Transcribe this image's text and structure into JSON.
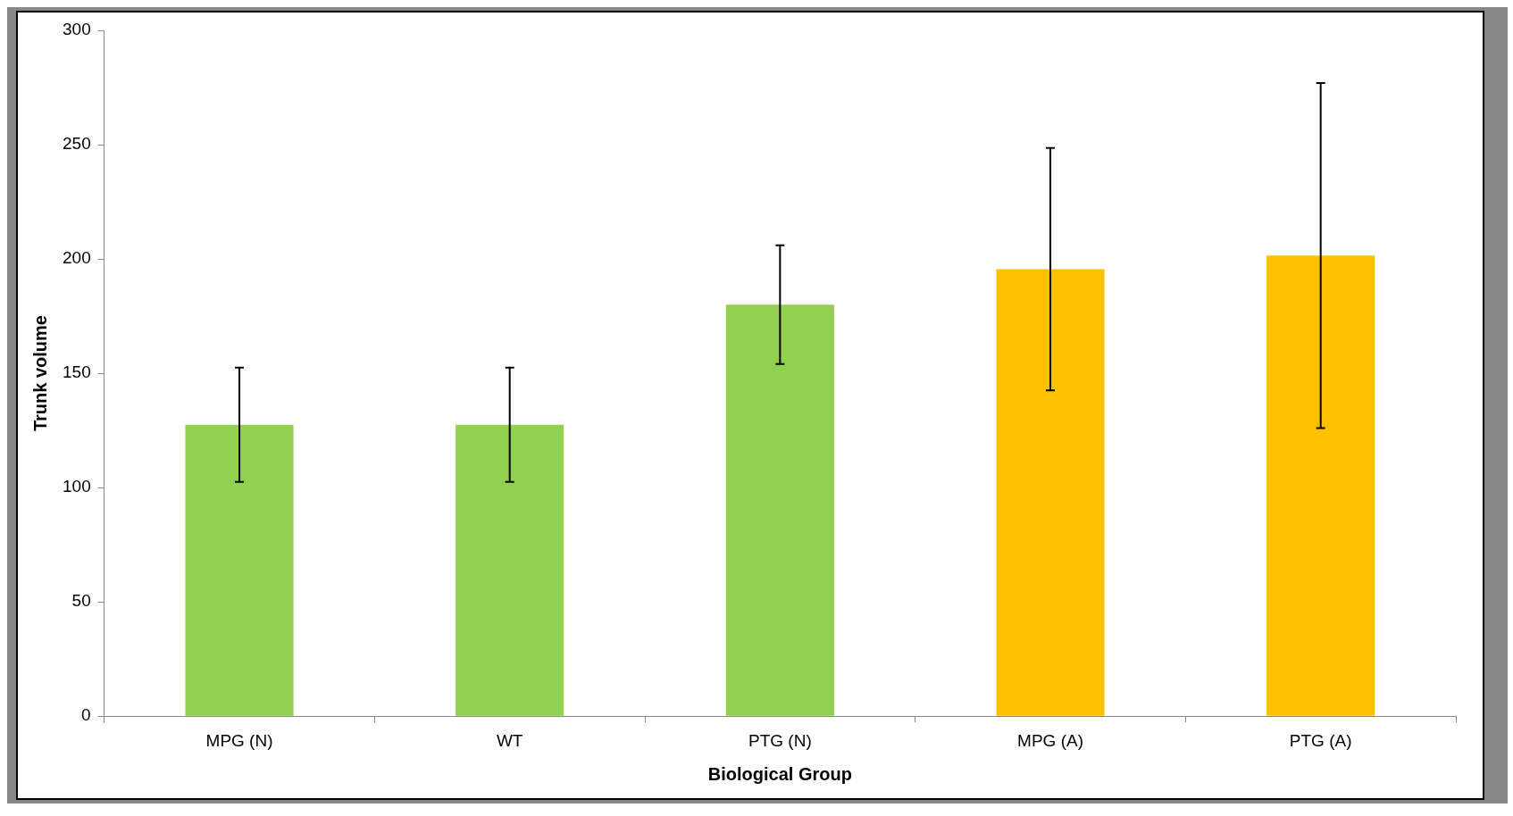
{
  "chart_data": {
    "type": "bar",
    "xlabel": "Biological Group",
    "ylabel": "Trunk volume",
    "categories": [
      "MPG (N)",
      "WT",
      "PTG (N)",
      "MPG (A)",
      "PTG (A)"
    ],
    "values": [
      127.5,
      127.5,
      180,
      195.5,
      201.5
    ],
    "colors": [
      "#92d050",
      "#92d050",
      "#92d050",
      "#ffc000",
      "#ffc000"
    ],
    "errors": [
      25,
      25,
      26,
      53,
      75.5
    ],
    "ylim": [
      0,
      300
    ],
    "yticks": [
      0,
      50,
      100,
      150,
      200,
      250,
      300
    ],
    "grid": false,
    "legend": false
  }
}
